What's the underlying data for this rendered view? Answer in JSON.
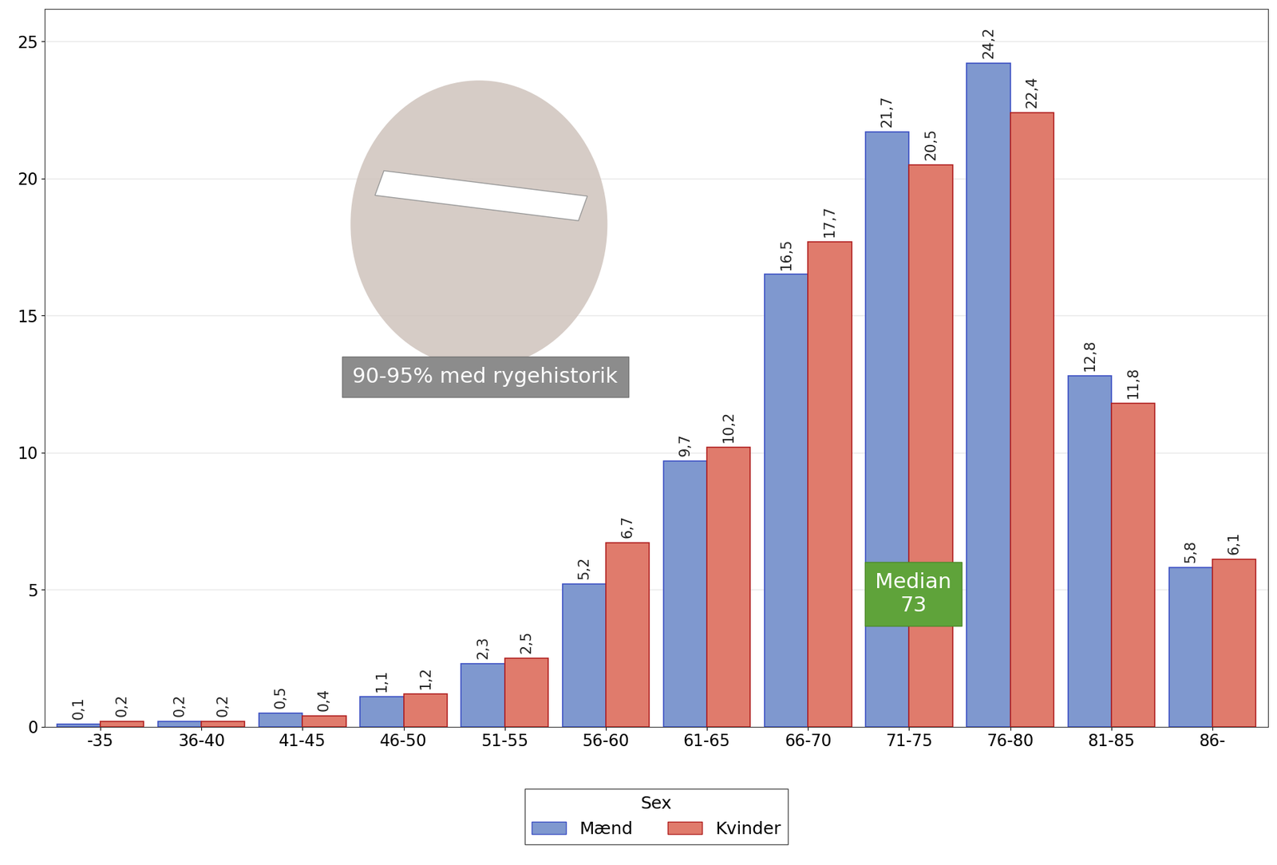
{
  "chart_data": {
    "type": "bar",
    "categories": [
      "-35",
      "36-40",
      "41-45",
      "46-50",
      "51-55",
      "56-60",
      "61-65",
      "66-70",
      "71-75",
      "76-80",
      "81-85",
      "86-"
    ],
    "series": [
      {
        "name": "Mænd",
        "color": "#7f98cf",
        "values": [
          0.1,
          0.2,
          0.5,
          1.1,
          2.3,
          5.2,
          9.7,
          16.5,
          21.7,
          24.2,
          12.8,
          5.8
        ],
        "value_labels": [
          "0,1",
          "0,2",
          "0,5",
          "1,1",
          "2,3",
          "5,2",
          "9,7",
          "16,5",
          "21,7",
          "24,2",
          "12,8",
          "5,8"
        ]
      },
      {
        "name": "Kvinder",
        "color": "#e07b6c",
        "values": [
          0.2,
          0.2,
          0.4,
          1.2,
          2.5,
          6.7,
          10.2,
          17.7,
          20.5,
          22.4,
          11.8,
          6.1
        ],
        "value_labels": [
          "0,2",
          "0,2",
          "0,4",
          "1,2",
          "2,5",
          "6,7",
          "10,2",
          "17,7",
          "20,5",
          "22,4",
          "11,8",
          "6,1"
        ]
      }
    ],
    "legend_title": "Sex",
    "legend": "bottom",
    "ylim": [
      0,
      26.2
    ],
    "yticks": [
      0,
      5,
      10,
      15,
      20,
      25
    ],
    "grid": true,
    "data_labels": true,
    "annotations": [
      {
        "text": "90-95% med rygehistorik"
      },
      {
        "text": "Median\n73"
      }
    ]
  }
}
